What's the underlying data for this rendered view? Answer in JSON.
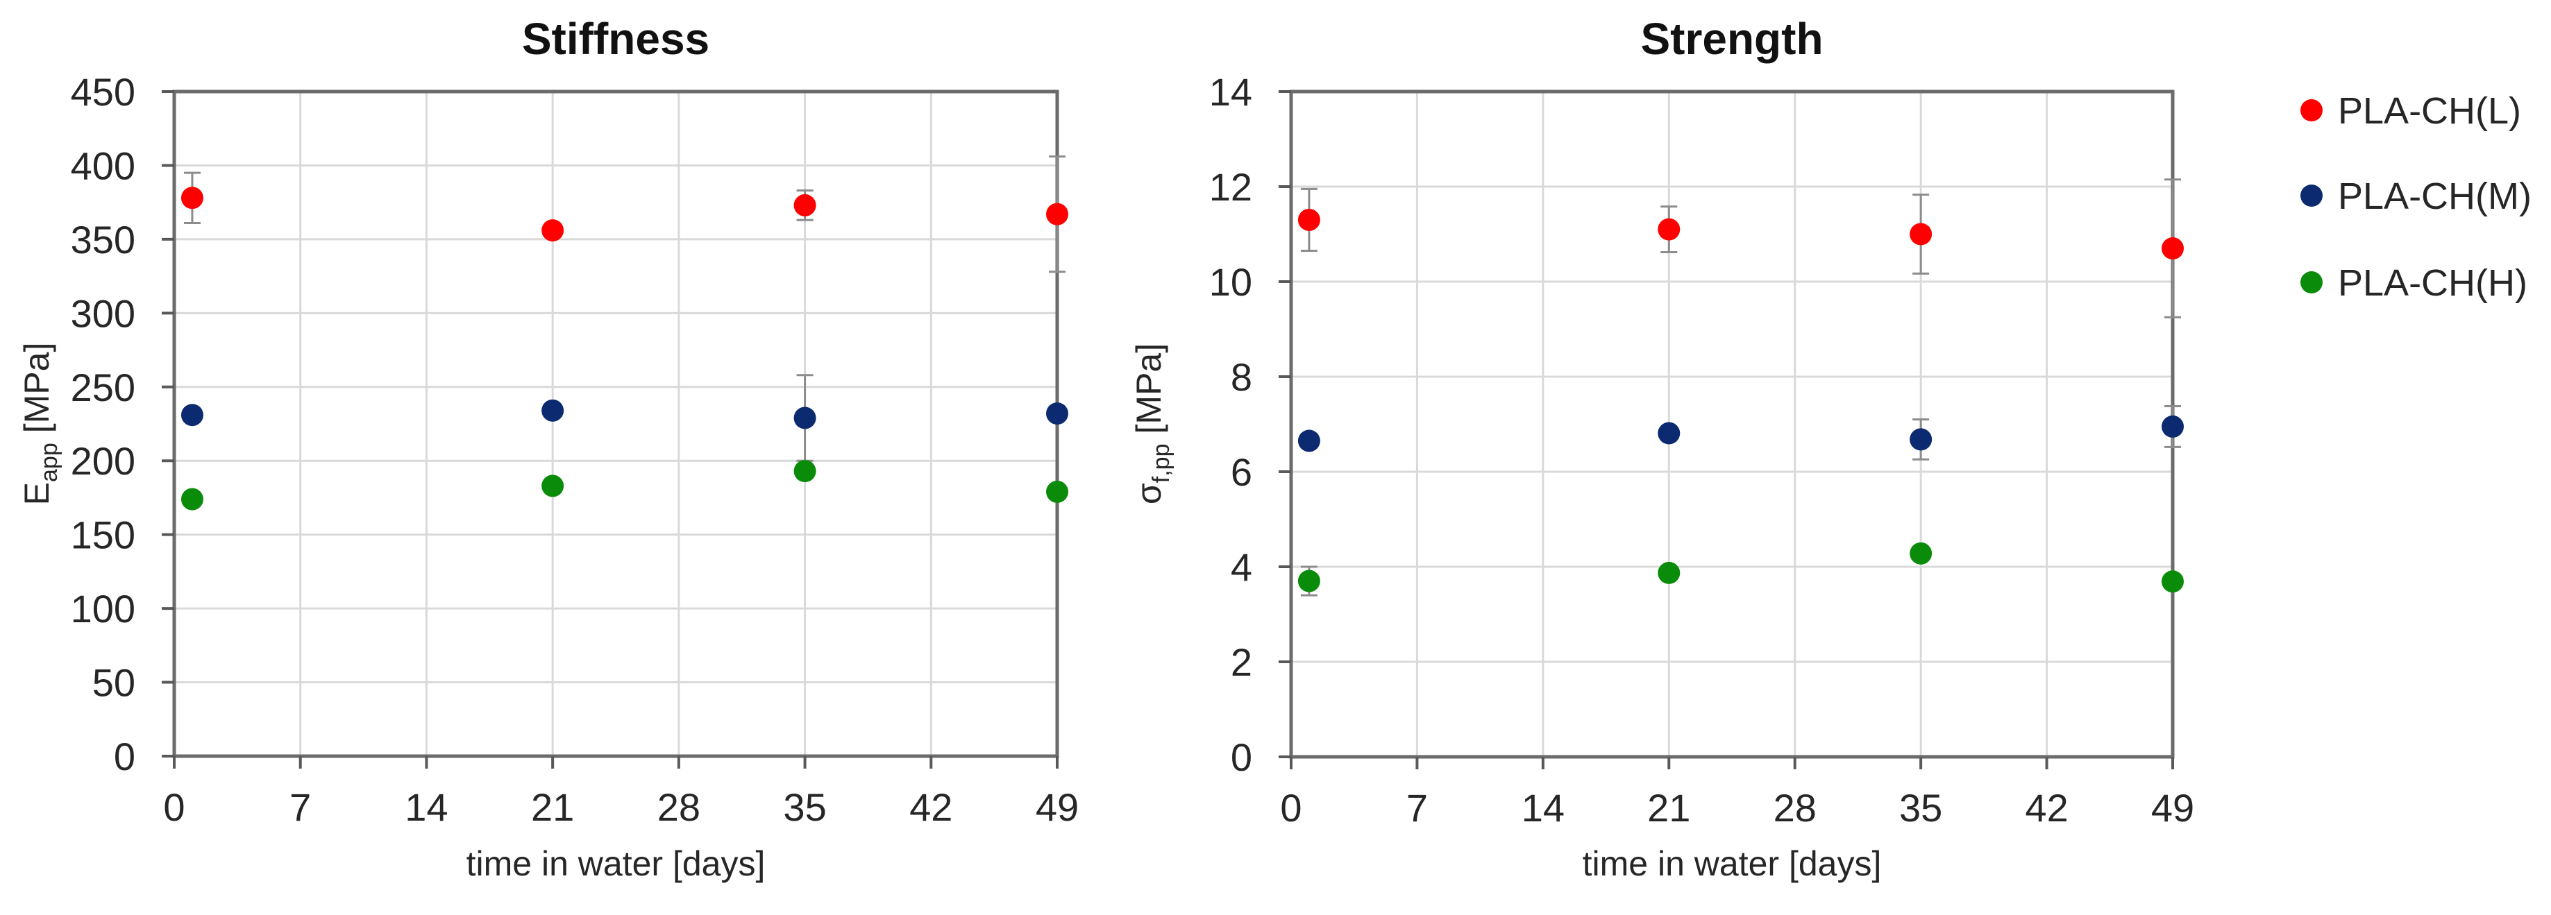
{
  "figure": {
    "legend": [
      {
        "label": "PLA-CH(L)",
        "color": "#ff0000"
      },
      {
        "label": "PLA-CH(M)",
        "color": "#0b2a6f"
      },
      {
        "label": "PLA-CH(H)",
        "color": "#0a8c0a"
      }
    ]
  },
  "chart_data": [
    {
      "type": "scatter",
      "title": "Stiffness",
      "xlabel": "time in water [days]",
      "ylabel": "E_app [MPa]",
      "ylabel_main": "E",
      "ylabel_sub": "app",
      "ylabel_unit": "[MPa]",
      "xlim": [
        0,
        49
      ],
      "ylim": [
        0,
        450
      ],
      "xticks": [
        0,
        7,
        14,
        21,
        28,
        35,
        42,
        49
      ],
      "yticks": [
        0,
        50,
        100,
        150,
        200,
        250,
        300,
        350,
        400,
        450
      ],
      "grid": true,
      "legend_position": "right (shared)",
      "x": [
        1,
        21,
        35,
        49
      ],
      "series": [
        {
          "name": "PLA-CH(L)",
          "color": "#ff0000",
          "values": [
            378,
            356,
            373,
            367
          ],
          "error": [
            17,
            3,
            10,
            39
          ]
        },
        {
          "name": "PLA-CH(M)",
          "color": "#0b2a6f",
          "values": [
            231,
            234,
            229,
            232
          ],
          "error": [
            0,
            0,
            29,
            0
          ]
        },
        {
          "name": "PLA-CH(H)",
          "color": "#0a8c0a",
          "values": [
            174,
            183,
            193,
            179
          ],
          "error": [
            0,
            0,
            0,
            0
          ]
        }
      ]
    },
    {
      "type": "scatter",
      "title": "Strength",
      "xlabel": "time in water [days]",
      "ylabel": "σ_f,pp [MPa]",
      "ylabel_main": "σ",
      "ylabel_sub": "f,pp",
      "ylabel_unit": "[MPa]",
      "xlim": [
        0,
        49
      ],
      "ylim": [
        0,
        14
      ],
      "xticks": [
        0,
        7,
        14,
        21,
        28,
        35,
        42,
        49
      ],
      "yticks": [
        0,
        2,
        4,
        6,
        8,
        10,
        12,
        14
      ],
      "grid": true,
      "legend_position": "right (shared)",
      "x": [
        1,
        21,
        35,
        49
      ],
      "series": [
        {
          "name": "PLA-CH(L)",
          "color": "#ff0000",
          "values": [
            11.3,
            11.1,
            11.0,
            10.7
          ],
          "error": [
            0.65,
            0.48,
            0.83,
            1.45
          ]
        },
        {
          "name": "PLA-CH(M)",
          "color": "#0b2a6f",
          "values": [
            6.65,
            6.81,
            6.68,
            6.95
          ],
          "error": [
            0,
            0,
            0.42,
            0.43
          ]
        },
        {
          "name": "PLA-CH(H)",
          "color": "#0a8c0a",
          "values": [
            3.7,
            3.87,
            4.28,
            3.69
          ],
          "error": [
            0.3,
            0,
            0,
            0
          ]
        }
      ]
    }
  ]
}
